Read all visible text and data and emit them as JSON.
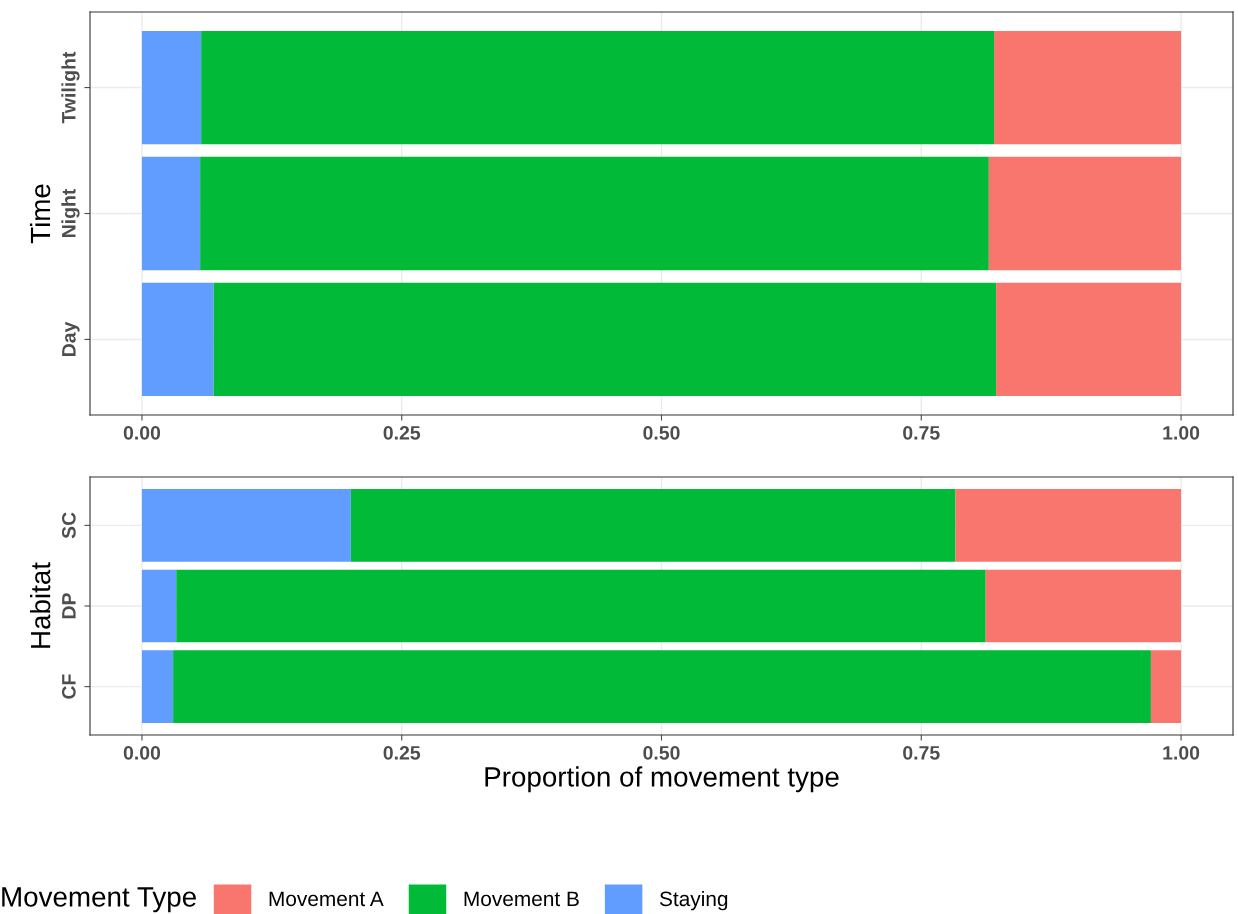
{
  "chart_data": [
    {
      "type": "bar",
      "orientation": "horizontal",
      "stacked": true,
      "ylabel": "Time",
      "categories": [
        "Twilight",
        "Night",
        "Day"
      ],
      "xlim": [
        -0.05,
        1.05
      ],
      "xticks": [
        {
          "value": 0,
          "label": "0.00"
        },
        {
          "value": 0.25,
          "label": "0.25"
        },
        {
          "value": 0.5,
          "label": "0.50"
        },
        {
          "value": 0.75,
          "label": "0.75"
        },
        {
          "value": 1,
          "label": "1.00"
        }
      ],
      "grid": true,
      "legend": false,
      "series": [
        {
          "color": "#619cff",
          "values": [
            0.057,
            0.056,
            0.069
          ]
        },
        {
          "color": "#00ba38",
          "values": [
            0.763,
            0.759,
            0.753
          ]
        },
        {
          "color": "#f8766d",
          "values": [
            0.18,
            0.185,
            0.178
          ]
        }
      ]
    },
    {
      "type": "bar",
      "orientation": "horizontal",
      "stacked": true,
      "ylabel": "Habitat",
      "xlabel": "Proportion of movement type",
      "legend_title": "Movement Type",
      "categories": [
        "SC",
        "DP",
        "CF"
      ],
      "xlim": [
        -0.05,
        1.05
      ],
      "xticks": [
        {
          "value": 0,
          "label": "0.00"
        },
        {
          "value": 0.25,
          "label": "0.25"
        },
        {
          "value": 0.5,
          "label": "0.50"
        },
        {
          "value": 0.75,
          "label": "0.75"
        },
        {
          "value": 1,
          "label": "1.00"
        }
      ],
      "grid": true,
      "legend": "bottom",
      "series": [
        {
          "name": "Staying",
          "color": "#619cff",
          "values": [
            0.201,
            0.033,
            0.03
          ]
        },
        {
          "name": "Movement B",
          "color": "#00ba38",
          "values": [
            0.582,
            0.779,
            0.941
          ]
        },
        {
          "name": "Movement A",
          "color": "#f8766d",
          "values": [
            0.217,
            0.188,
            0.029
          ]
        }
      ]
    }
  ]
}
